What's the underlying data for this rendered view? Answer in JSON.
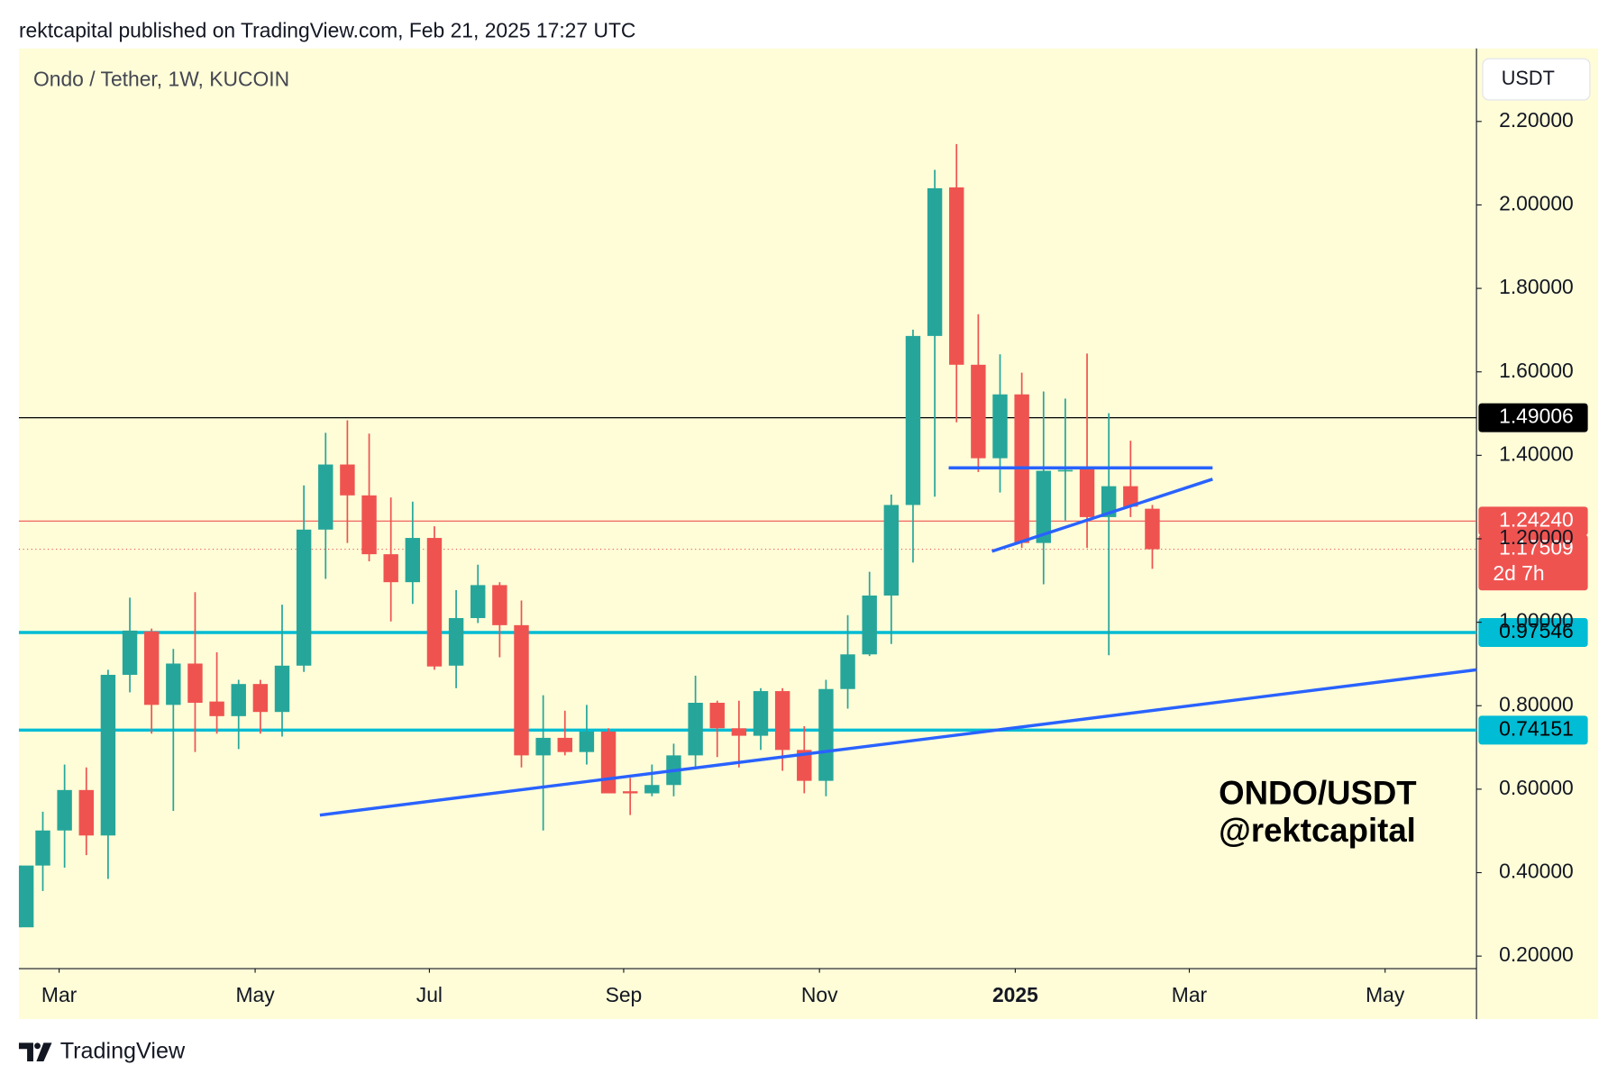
{
  "header": "rektcapital published on TradingView.com, Feb 21, 2025 17:27 UTC",
  "footer": "TradingView",
  "chart_data": {
    "type": "candlestick",
    "title": "Ondo / Tether, 1W, KUCOIN",
    "currency": "USDT",
    "watermark": [
      "ONDO/USDT",
      "@rektcapital"
    ],
    "up_color": "#26a69a",
    "down_color": "#ef5350",
    "x": [
      0,
      1,
      2,
      3,
      4,
      5,
      6,
      7,
      8,
      9,
      10,
      11,
      12,
      13,
      14,
      15,
      16,
      17,
      18,
      19,
      20,
      21,
      22,
      23,
      24,
      25,
      26,
      27,
      28,
      29,
      30,
      31,
      32,
      33,
      34,
      35,
      36,
      37,
      38,
      39,
      40,
      41,
      42,
      43,
      44,
      45,
      46,
      47,
      48,
      49,
      50,
      51,
      52
    ],
    "open": [
      0.269,
      0.417,
      0.501,
      0.598,
      0.489,
      0.874,
      0.978,
      0.802,
      0.901,
      0.81,
      0.775,
      0.852,
      0.785,
      0.896,
      1.222,
      1.378,
      1.304,
      1.163,
      1.096,
      1.202,
      0.896,
      1.01,
      1.089,
      0.993,
      0.681,
      0.723,
      0.689,
      0.738,
      0.595,
      0.59,
      0.61,
      0.681,
      0.807,
      0.746,
      0.728,
      0.835,
      0.694,
      0.62,
      0.84,
      0.923,
      1.064,
      1.281,
      1.686,
      2.042,
      1.617,
      1.393,
      1.546,
      1.19,
      1.363,
      1.368,
      1.252,
      1.326,
      1.272
    ],
    "high": [
      0.417,
      0.546,
      0.659,
      0.652,
      0.886,
      1.059,
      0.985,
      0.936,
      1.072,
      0.928,
      0.862,
      0.862,
      1.042,
      1.328,
      1.454,
      1.484,
      1.452,
      1.299,
      1.289,
      1.23,
      1.077,
      1.138,
      1.096,
      1.052,
      0.825,
      0.788,
      0.802,
      0.746,
      0.627,
      0.659,
      0.709,
      0.872,
      0.812,
      0.812,
      0.842,
      0.842,
      0.751,
      0.862,
      1.017,
      1.121,
      1.306,
      1.701,
      2.084,
      2.146,
      1.738,
      1.642,
      1.598,
      1.553,
      1.536,
      1.644,
      1.501,
      1.435,
      1.281
    ],
    "low": [
      0.269,
      0.356,
      0.412,
      0.442,
      0.385,
      0.832,
      0.733,
      0.548,
      0.689,
      0.733,
      0.696,
      0.733,
      0.726,
      0.881,
      1.104,
      1.19,
      1.146,
      1.002,
      1.044,
      0.886,
      0.842,
      0.998,
      0.916,
      0.652,
      0.501,
      0.681,
      0.659,
      0.59,
      0.538,
      0.583,
      0.583,
      0.652,
      0.677,
      0.652,
      0.694,
      0.644,
      0.59,
      0.583,
      0.793,
      0.919,
      0.948,
      1.143,
      1.301,
      1.479,
      1.36,
      1.311,
      1.178,
      1.091,
      1.244,
      1.178,
      0.921,
      1.252,
      1.128
    ],
    "close": [
      0.417,
      0.501,
      0.598,
      0.489,
      0.874,
      0.98,
      0.802,
      0.901,
      0.807,
      0.775,
      0.852,
      0.785,
      0.896,
      1.222,
      1.378,
      1.304,
      1.163,
      1.096,
      1.202,
      0.894,
      1.01,
      1.089,
      0.993,
      0.681,
      0.723,
      0.689,
      0.738,
      0.59,
      0.59,
      0.61,
      0.681,
      0.807,
      0.746,
      0.728,
      0.835,
      0.694,
      0.62,
      0.84,
      0.923,
      1.064,
      1.281,
      1.686,
      2.04,
      1.617,
      1.393,
      1.546,
      1.19,
      1.363,
      1.365,
      1.252,
      1.326,
      1.277,
      1.175
    ],
    "xlim": [
      -0.1,
      66.9
    ],
    "xticks": [
      {
        "value": 1.75,
        "label": "Mar"
      },
      {
        "value": 10.76,
        "label": "May"
      },
      {
        "value": 18.77,
        "label": "Jul"
      },
      {
        "value": 27.7,
        "label": "Sep"
      },
      {
        "value": 36.7,
        "label": "Nov"
      },
      {
        "value": 45.7,
        "label": "2025"
      },
      {
        "value": 53.7,
        "label": "Mar"
      },
      {
        "value": 62.7,
        "label": "May"
      }
    ],
    "ylim": [
      0.17,
      2.375
    ],
    "yticks": [
      {
        "value": 0.2,
        "label": "0.20000"
      },
      {
        "value": 0.4,
        "label": "0.40000"
      },
      {
        "value": 0.6,
        "label": "0.60000"
      },
      {
        "value": 0.8,
        "label": "0.80000"
      },
      {
        "value": 1.0,
        "label": "1.00000"
      },
      {
        "value": 1.2,
        "label": "1.20000"
      },
      {
        "value": 1.4,
        "label": "1.40000"
      },
      {
        "value": 1.6,
        "label": "1.60000"
      },
      {
        "value": 1.8,
        "label": "1.80000"
      },
      {
        "value": 2.0,
        "label": "2.00000"
      },
      {
        "value": 2.2,
        "label": "2.20000"
      }
    ],
    "levels": [
      {
        "value": 1.49006,
        "label": "1.49006",
        "color": "#000000",
        "text_color": "#ffffff",
        "style": "solid"
      },
      {
        "value": 1.2424,
        "label": "1.24240",
        "color": "#ef5350",
        "text_color": "#ffffff",
        "style": "solid"
      },
      {
        "value": 1.17509,
        "label": "1.17509",
        "color": "#ef5350",
        "text_color": "#ffffff",
        "style": "dotted",
        "countdown": "2d 7h"
      },
      {
        "value": 0.97546,
        "label": "0.97546",
        "color": "#00bcd4",
        "text_color": "#000000",
        "style": "thick"
      },
      {
        "value": 0.74151,
        "label": "0.74151",
        "color": "#00bcd4",
        "text_color": "#000000",
        "style": "thick"
      }
    ]
  }
}
